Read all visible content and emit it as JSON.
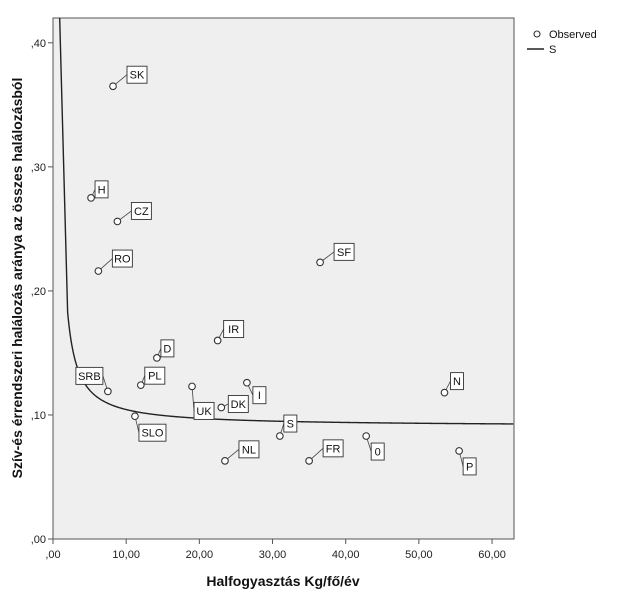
{
  "chart_data": {
    "type": "scatter",
    "xlabel": "Halfogyasztás Kg/fő/év",
    "ylabel": "Szív-és érrendszeri halálozás aránya az összes halálozásból",
    "xlim": [
      0,
      63
    ],
    "ylim": [
      0,
      0.42
    ],
    "x_ticks": [
      0,
      10,
      20,
      30,
      40,
      50,
      60
    ],
    "x_tick_labels": [
      ",00",
      "10,00",
      "20,00",
      "30,00",
      "40,00",
      "50,00",
      "60,00"
    ],
    "y_ticks": [
      0,
      0.1,
      0.2,
      0.3,
      0.4
    ],
    "y_tick_labels": [
      ",00",
      ",10",
      ",20",
      ",30",
      ",40"
    ],
    "grid": false,
    "legend": {
      "placement": "top-right-outside",
      "entries": [
        {
          "label": "Observed",
          "marker": "open-circle"
        },
        {
          "label": "S",
          "marker": "line"
        }
      ]
    },
    "series": [
      {
        "name": "Observed",
        "kind": "scatter",
        "points": [
          {
            "label": "SK",
            "x": 8.2,
            "y": 0.365
          },
          {
            "label": "H",
            "x": 5.2,
            "y": 0.275
          },
          {
            "label": "CZ",
            "x": 8.8,
            "y": 0.256
          },
          {
            "label": "RO",
            "x": 6.2,
            "y": 0.216
          },
          {
            "label": "SF",
            "x": 36.5,
            "y": 0.223
          },
          {
            "label": "IR",
            "x": 22.5,
            "y": 0.16
          },
          {
            "label": "D",
            "x": 14.2,
            "y": 0.146
          },
          {
            "label": "PL",
            "x": 12.0,
            "y": 0.124
          },
          {
            "label": "SRB",
            "x": 7.5,
            "y": 0.119
          },
          {
            "label": "SLO",
            "x": 11.2,
            "y": 0.099
          },
          {
            "label": "UK",
            "x": 19.0,
            "y": 0.123
          },
          {
            "label": "DK",
            "x": 23.0,
            "y": 0.106
          },
          {
            "label": "I",
            "x": 26.5,
            "y": 0.126
          },
          {
            "label": "NL",
            "x": 23.5,
            "y": 0.063
          },
          {
            "label": "S",
            "x": 31.0,
            "y": 0.083
          },
          {
            "label": "FR",
            "x": 35.0,
            "y": 0.063
          },
          {
            "label": "0",
            "x": 42.8,
            "y": 0.083
          },
          {
            "label": "N",
            "x": 53.5,
            "y": 0.118
          },
          {
            "label": "P",
            "x": 55.5,
            "y": 0.071
          }
        ]
      },
      {
        "name": "S",
        "kind": "fitted-curve",
        "model": "S-curve: y = exp(b0 + b1/x)",
        "b0": -2.4,
        "b1": 1.4
      }
    ]
  }
}
